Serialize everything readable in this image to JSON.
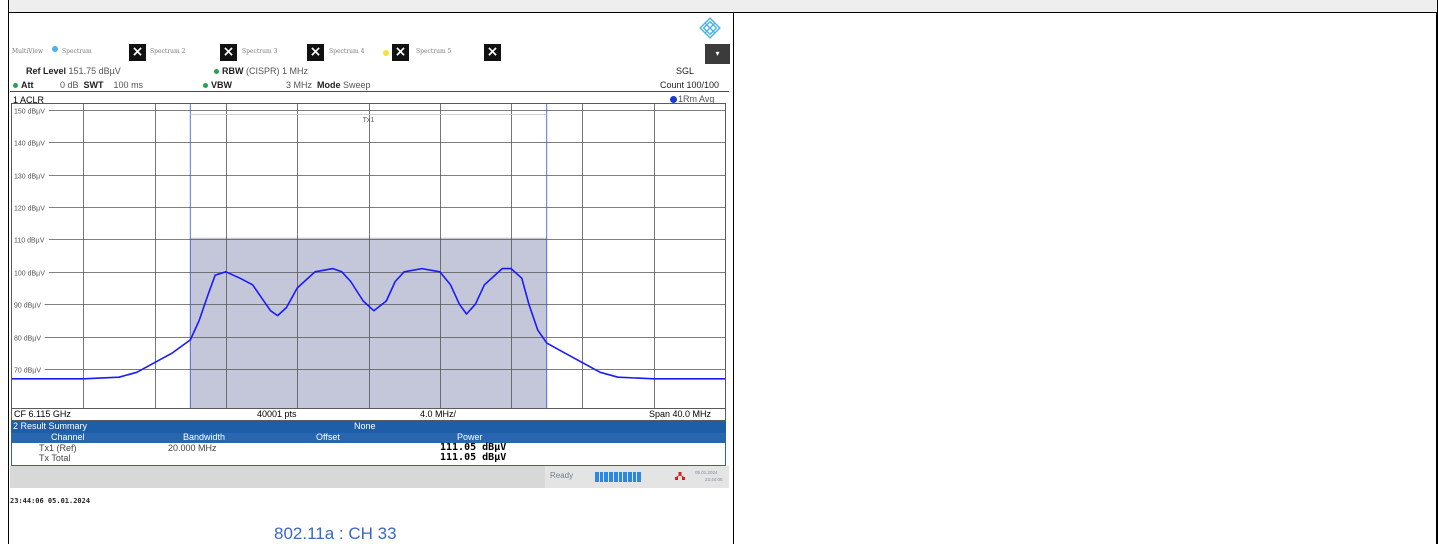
{
  "tabs": [
    {
      "label": "MultiView"
    },
    {
      "label": "Spectrum"
    },
    {
      "label": "Spectrum 2"
    },
    {
      "label": "Spectrum 3"
    },
    {
      "label": "Spectrum 4"
    },
    {
      "label": "Spectrum 5"
    }
  ],
  "header": {
    "ref_level_label": "Ref Level",
    "ref_level_value": "151.75 dBµV",
    "att_label": "Att",
    "att_value": "0 dB",
    "swt_label": "SWT",
    "swt_value": "100 ms",
    "rbw_label": "RBW",
    "rbw_value": "(CISPR) 1 MHz",
    "vbw_label": "VBW",
    "vbw_value": "3 MHz",
    "mode_label": "Mode",
    "mode_value": "Sweep",
    "sgl": "SGL",
    "count": "Count 100/100"
  },
  "window": {
    "title": "1 ACLR",
    "trace_label": "1Rm Avg"
  },
  "chart_data": {
    "type": "line",
    "ylabel_ticks": [
      "150 dBµV",
      "140 dBµV",
      "130 dBµV",
      "120 dBµV",
      "110 dBµV",
      "100 dBµV",
      "90 dBµV",
      "80 dBµV",
      "70 dBµV"
    ],
    "ylim": [
      58,
      151.75
    ],
    "xlim": [
      -20,
      20
    ],
    "x_unit": "MHz offset from CF",
    "channel_label": "Tx1",
    "channel_band": [
      -10,
      10
    ],
    "channel_limit": 110.5,
    "x": [
      -20,
      -16,
      -14,
      -13,
      -11,
      -10,
      -9.5,
      -9,
      -8.6,
      -8,
      -7.2,
      -6.5,
      -6,
      -5.5,
      -5.1,
      -4.6,
      -4,
      -3,
      -2,
      -1.5,
      -1,
      -0.3,
      0.3,
      1,
      1.5,
      2,
      3,
      4,
      4.6,
      5.1,
      5.5,
      6,
      6.5,
      7.5,
      8,
      8.6,
      9,
      9.5,
      10,
      11,
      13,
      14,
      16,
      20
    ],
    "values": [
      67,
      67,
      67.5,
      69,
      75,
      79,
      85,
      93,
      99,
      100,
      98,
      96,
      92,
      88,
      86.5,
      89,
      95,
      100,
      101,
      100,
      97,
      91,
      88,
      91,
      97,
      100,
      101,
      100,
      96,
      90,
      87,
      90,
      96,
      101,
      101,
      98,
      90,
      82,
      78,
      75,
      69,
      67.5,
      67,
      67
    ],
    "trace_color": "#1a1aff",
    "fill_color": "#c4c6da"
  },
  "footer": {
    "cf": "CF 6.115 GHz",
    "pts": "40001 pts",
    "div": "4.0 MHz/",
    "span": "Span 40.0 MHz"
  },
  "result_summary": {
    "title": "2 Result Summary",
    "mode": "None",
    "columns": [
      "Channel",
      "Bandwidth",
      "Offset",
      "Power"
    ],
    "rows": [
      {
        "channel": "Tx1 (Ref)",
        "bandwidth": "20.000 MHz",
        "power": "111.05 dBµV"
      },
      {
        "channel": "Tx Total",
        "bandwidth": "",
        "power": "111.05 dBµV"
      }
    ]
  },
  "status": {
    "ready": "Ready",
    "date": "05.01.2024",
    "time": "23:44:05"
  },
  "timestamp": "23:44:06  05.01.2024",
  "caption": "802.11a : CH 33"
}
